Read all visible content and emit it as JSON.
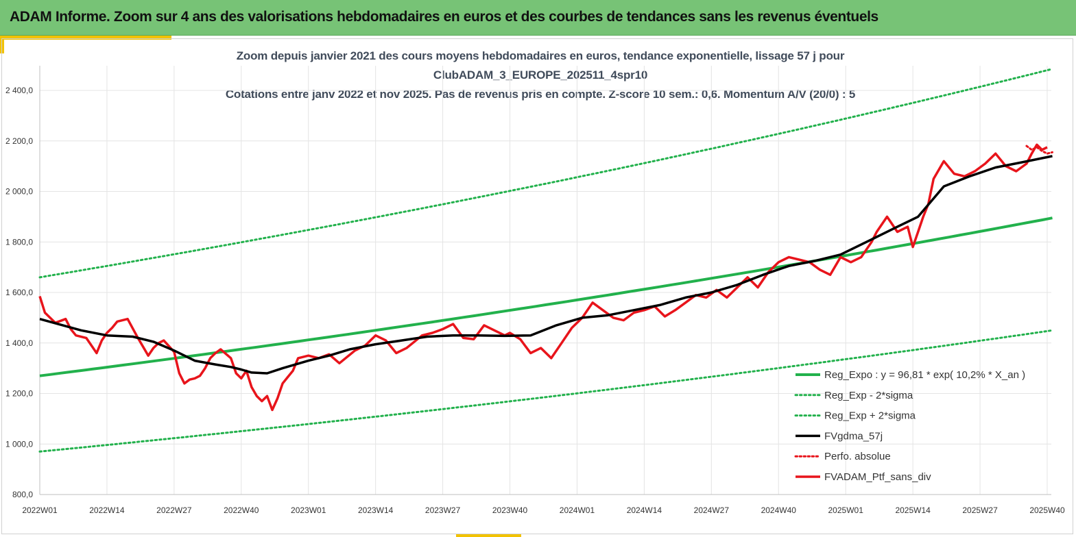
{
  "header": {
    "title": "ADAM Informe. Zoom sur 4 ans des valorisations hebdomadaires en euros et des courbes de tendances sans les revenus éventuels"
  },
  "colors": {
    "header_bg": "#77c376",
    "accent": "#f2c200",
    "reg_expo": "#22b14c",
    "gdma": "#000000",
    "ptf": "#e8141b",
    "grid": "#e4e4e4"
  },
  "chart_data": {
    "type": "line",
    "title_lines": [
      "Zoom depuis janvier 2021 des cours moyens hebdomadaires  en euros, tendance exponentielle, lissage 57 j pour",
      "ClubADAM_3_EUROPE_202511_4spr10",
      "Cotations  entre janv 2022 et nov 2025. Pas de revenus pris en compte. Z-score 10 sem.: 0,6. Momentum  A/V (20/0) : 5"
    ],
    "ylim": [
      800,
      2400
    ],
    "y_ticks": [
      "800,0",
      "1 000,0",
      "1 200,0",
      "1 400,0",
      "1 600,0",
      "1 800,0",
      "2 000,0",
      "2 200,0",
      "2 400,0"
    ],
    "x_ticks": [
      "2022W01",
      "2022W14",
      "2022W27",
      "2022W40",
      "2023W01",
      "2023W14",
      "2023W27",
      "2023W40",
      "2024W01",
      "2024W14",
      "2024W27",
      "2024W40",
      "2025W01",
      "2025W14",
      "2025W27",
      "2025W40"
    ],
    "grid": true,
    "legend_position": "bottom-right",
    "series": [
      {
        "key": "reg",
        "name": "Reg_Expo : y = 96,81 * exp( 10,2% *  X_an )",
        "style": "solid",
        "x": [
          0,
          196
        ],
        "values": [
          1270,
          1895
        ]
      },
      {
        "key": "reg_minus",
        "name": "Reg_Exp - 2*sigma",
        "style": "dotted",
        "x": [
          0,
          196
        ],
        "values": [
          970,
          1450
        ]
      },
      {
        "key": "reg_plus",
        "name": "Reg_Exp + 2*sigma",
        "style": "dotted",
        "x": [
          0,
          196
        ],
        "values": [
          1660,
          2485
        ]
      },
      {
        "key": "gdma",
        "name": "FVgdma_57j",
        "style": "solid",
        "x": [
          0,
          8,
          13,
          18,
          22,
          26,
          30,
          34,
          37,
          39,
          41,
          44,
          47,
          52,
          56,
          60,
          65,
          70,
          75,
          80,
          85,
          90,
          95,
          100,
          105,
          110,
          115,
          120,
          125,
          130,
          135,
          140,
          145,
          150,
          155,
          160,
          163,
          166,
          170,
          175,
          180,
          185,
          190,
          196
        ],
        "values": [
          1495,
          1450,
          1430,
          1425,
          1405,
          1370,
          1330,
          1315,
          1305,
          1295,
          1283,
          1280,
          1300,
          1330,
          1350,
          1375,
          1395,
          1410,
          1425,
          1430,
          1430,
          1428,
          1430,
          1470,
          1500,
          1510,
          1530,
          1550,
          1580,
          1600,
          1630,
          1670,
          1705,
          1725,
          1750,
          1800,
          1830,
          1860,
          1900,
          2020,
          2060,
          2095,
          2115,
          2140
        ]
      },
      {
        "key": "perf",
        "name": "Perfo. absolue",
        "style": "dotted",
        "x": [
          191,
          192,
          193,
          194,
          195,
          196
        ],
        "values": [
          2180,
          2165,
          2175,
          2160,
          2150,
          2155
        ]
      },
      {
        "key": "ptf",
        "name": "FVADAM_Ptf_sans_div",
        "style": "solid",
        "x": [
          0,
          1,
          3,
          5,
          6,
          7,
          9,
          11,
          12,
          13,
          14,
          15,
          17,
          19,
          21,
          22,
          23,
          24,
          26,
          27,
          28,
          29,
          30,
          31,
          32,
          33,
          34,
          35,
          37,
          38,
          39,
          40,
          41,
          42,
          43,
          44,
          45,
          46,
          47,
          48,
          49,
          50,
          52,
          54,
          56,
          58,
          61,
          63,
          65,
          67,
          69,
          71,
          74,
          76,
          78,
          80,
          82,
          84,
          86,
          88,
          90,
          91,
          93,
          95,
          97,
          99,
          101,
          103,
          105,
          107,
          109,
          111,
          113,
          115,
          117,
          119,
          121,
          123,
          125,
          127,
          129,
          131,
          133,
          135,
          137,
          139,
          141,
          143,
          145,
          147,
          149,
          151,
          153,
          155,
          157,
          159,
          161,
          162,
          164,
          166,
          168,
          169,
          170,
          171,
          172,
          173,
          175,
          177,
          179,
          181,
          183,
          185,
          187,
          189,
          191,
          192,
          193,
          194,
          195
        ],
        "values": [
          1585,
          1520,
          1480,
          1495,
          1455,
          1430,
          1420,
          1360,
          1410,
          1440,
          1460,
          1485,
          1495,
          1420,
          1350,
          1380,
          1400,
          1410,
          1365,
          1280,
          1240,
          1255,
          1260,
          1270,
          1300,
          1340,
          1360,
          1375,
          1340,
          1280,
          1260,
          1290,
          1225,
          1190,
          1170,
          1190,
          1135,
          1180,
          1240,
          1265,
          1290,
          1340,
          1350,
          1340,
          1355,
          1320,
          1370,
          1390,
          1430,
          1410,
          1360,
          1380,
          1430,
          1440,
          1455,
          1475,
          1420,
          1415,
          1470,
          1450,
          1430,
          1440,
          1415,
          1360,
          1380,
          1340,
          1400,
          1460,
          1500,
          1560,
          1530,
          1500,
          1490,
          1520,
          1530,
          1545,
          1505,
          1530,
          1560,
          1590,
          1580,
          1610,
          1580,
          1620,
          1660,
          1620,
          1680,
          1720,
          1740,
          1730,
          1720,
          1690,
          1670,
          1740,
          1720,
          1740,
          1800,
          1840,
          1900,
          1840,
          1860,
          1780,
          1840,
          1900,
          1950,
          2050,
          2120,
          2070,
          2060,
          2080,
          2110,
          2150,
          2100,
          2080,
          2110,
          2150,
          2185,
          2165,
          2175
        ]
      }
    ]
  }
}
